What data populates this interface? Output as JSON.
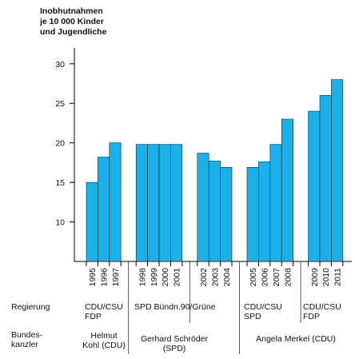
{
  "chart_data": {
    "type": "bar",
    "title": [
      "Inobhutnahmen",
      "je 10 000 Kinder",
      "und Jugendliche"
    ],
    "categories": [
      "1995",
      "1996",
      "1997",
      "1998",
      "1999",
      "2000",
      "2001",
      "2002",
      "2003",
      "2004",
      "2005",
      "2006",
      "2007",
      "2008",
      "2009",
      "2010",
      "2011"
    ],
    "groups": [
      {
        "years": [
          "1995",
          "1996",
          "1997"
        ],
        "values": [
          15,
          18.2,
          20
        ]
      },
      {
        "years": [
          "1998",
          "1999",
          "2000",
          "2001"
        ],
        "values": [
          19.8,
          19.8,
          19.8,
          19.8
        ]
      },
      {
        "years": [
          "2002",
          "2003",
          "2004"
        ],
        "values": [
          18.7,
          17.7,
          16.9
        ]
      },
      {
        "years": [
          "2005",
          "2006",
          "2007",
          "2008"
        ],
        "values": [
          16.9,
          17.6,
          19.8,
          23
        ]
      },
      {
        "years": [
          "2009",
          "2010",
          "2011"
        ],
        "values": [
          24,
          26,
          28
        ]
      }
    ],
    "yticks": [
      10,
      15,
      20,
      25,
      30
    ],
    "ylim": [
      5,
      32
    ],
    "bar_color": "#1ab0ea",
    "grid": false
  },
  "rows": {
    "regierung_label": "Regierung",
    "kanzler_label": [
      "Bundes-",
      "kanzler"
    ]
  },
  "governments": [
    [
      "CDU/CSU",
      "FDP"
    ],
    [
      "SPD Bündn.90/Grüne"
    ],
    [
      "CDU/CSU",
      "SPD"
    ],
    [
      "CDU/CSU",
      "FDP"
    ]
  ],
  "chancellors": [
    [
      "Helmut",
      "Kohl (CDU)"
    ],
    [
      "Gerhard Schröder",
      "(SPD)"
    ],
    [
      "Angela Merkel (CDU)"
    ]
  ]
}
